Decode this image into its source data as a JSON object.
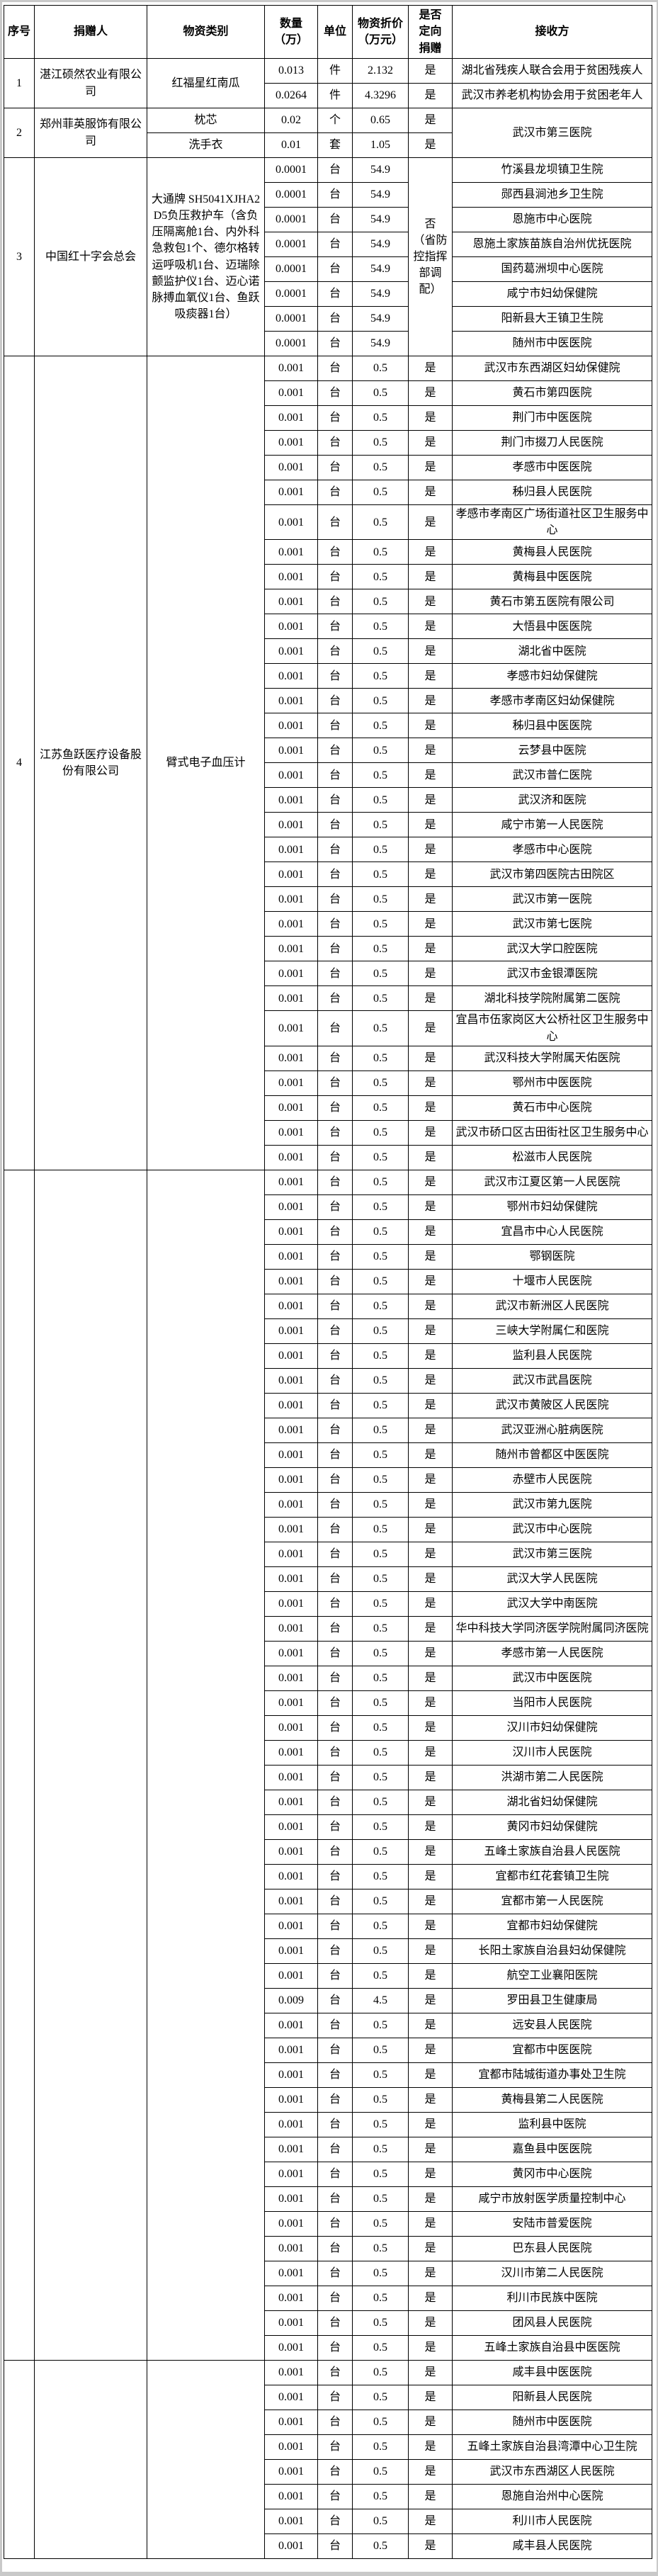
{
  "page": {
    "background": "#ffffff",
    "edge_color": "#c9c9c9",
    "border_color": "#000000"
  },
  "table": {
    "header": [
      "序号",
      "捐赠人",
      "物资类别",
      "数量\n（万）",
      "单位",
      "物资折价\n（万元）",
      "是否\n定向\n捐赠",
      "接收方"
    ],
    "sections": [
      {
        "index": "1",
        "donor": "湛江硕然农业有限公司",
        "category": "红福星红南瓜",
        "directed": null,
        "recipient": null,
        "defaults": {
          "u": "件",
          "d": "是"
        },
        "rows": [
          {
            "q": "0.013",
            "v": "2.132",
            "r": "湖北省残疾人联合会用于贫困残疾人"
          },
          {
            "q": "0.0264",
            "v": "4.3296",
            "r": "武汉市养老机构协会用于贫困老年人"
          }
        ]
      },
      {
        "index": "2",
        "donor": "郑州菲英服饰有限公司",
        "category": null,
        "directed": null,
        "recipient": "武汉市第三医院",
        "defaults": {
          "d": "是"
        },
        "rows": [
          {
            "c": "枕芯",
            "q": "0.02",
            "u": "个",
            "v": "0.65"
          },
          {
            "c": "洗手衣",
            "q": "0.01",
            "u": "套",
            "v": "1.05"
          }
        ]
      },
      {
        "index": "3",
        "donor": "中国红十字会总会",
        "category": "大通牌 SH5041XJHA2D5负压救护车（含负压隔离舱1台、内外科急救包1个、德尔格转运呼吸机1台、迈瑞除颤监护仪1台、迈心诺脉搏血氧仪1台、鱼跃吸痰器1台）",
        "directed": "否\n（省防\n控指挥\n部调配）",
        "recipient": null,
        "defaults": {
          "q": "0.0001",
          "u": "台",
          "v": "54.9"
        },
        "rows": [
          "竹溪县龙坝镇卫生院",
          "郧西县涧池乡卫生院",
          "恩施市中心医院",
          "恩施土家族苗族自治州优抚医院",
          "国药葛洲坝中心医院",
          "咸宁市妇幼保健院",
          "阳新县大王镇卫生院",
          "随州市中医医院"
        ]
      },
      {
        "index": "4",
        "donor": "江苏鱼跃医疗设备股份有限公司",
        "category": "臂式电子血压计",
        "directed": null,
        "recipient": null,
        "defaults": {
          "q": "0.001",
          "u": "台",
          "v": "0.5",
          "d": "是"
        },
        "rows": [
          "武汉市东西湖区妇幼保健院",
          "黄石市第四医院",
          "荆门市中医医院",
          "荆门市掇刀人民医院",
          "孝感市中医医院",
          "秭归县人民医院",
          "孝感市孝南区广场街道社区卫生服务中心",
          "黄梅县人民医院",
          "黄梅县中医医院",
          "黄石市第五医院有限公司",
          "大悟县中医医院",
          "湖北省中医院",
          "孝感市妇幼保健院",
          "孝感市孝南区妇幼保健院",
          "秭归县中医医院",
          "云梦县中医院",
          "武汉市普仁医院",
          "武汉济和医院",
          "咸宁市第一人民医院",
          "孝感市中心医院",
          "武汉市第四医院古田院区",
          "武汉市第一医院",
          "武汉市第七医院",
          "武汉大学口腔医院",
          "武汉市金银潭医院",
          "湖北科技学院附属第二医院",
          "宜昌市伍家岗区大公桥社区卫生服务中心",
          "武汉科技大学附属天佑医院",
          "鄂州市中医医院",
          "黄石市中心医院",
          "武汉市硚口区古田街社区卫生服务中心",
          "松滋市人民医院"
        ]
      },
      {
        "index": "",
        "donor": "",
        "category": "",
        "directed": null,
        "recipient": null,
        "defaults": {
          "q": "0.001",
          "u": "台",
          "v": "0.5",
          "d": "是"
        },
        "rows": [
          "武汉市江夏区第一人民医院",
          "鄂州市妇幼保健院",
          "宜昌市中心人民医院",
          "鄂钢医院",
          "十堰市人民医院",
          "武汉市新洲区人民医院",
          "三峡大学附属仁和医院",
          "监利县人民医院",
          "武汉市武昌医院",
          "武汉市黄陂区人民医院",
          "武汉亚洲心脏病医院",
          "随州市曾都区中医医院",
          "赤壁市人民医院",
          "武汉市第九医院",
          "武汉市中心医院",
          "武汉市第三医院",
          "武汉大学人民医院",
          "武汉大学中南医院",
          "华中科技大学同济医学院附属同济医院",
          "孝感市第一人民医院",
          "武汉市中医医院",
          "当阳市人民医院",
          "汉川市妇幼保健院",
          "汉川市人民医院",
          "洪湖市第二人民医院",
          "湖北省妇幼保健院",
          "黄冈市妇幼保健院",
          "五峰土家族自治县人民医院",
          "宜都市红花套镇卫生院",
          "宜都市第一人民医院",
          "宜都市妇幼保健院",
          "长阳土家族自治县妇幼保健院",
          "航空工业襄阳医院",
          {
            "q": "0.009",
            "v": "4.5",
            "r": "罗田县卫生健康局"
          },
          "远安县人民医院",
          "宜都市中医医院",
          "宜都市陆城街道办事处卫生院",
          "黄梅县第二人民医院",
          "监利县中医院",
          "嘉鱼县中医医院",
          "黄冈市中心医院",
          "咸宁市放射医学质量控制中心",
          "安陆市普爱医院",
          "巴东县人民医院",
          "汉川市第二人民医院",
          "利川市民族中医院",
          "团风县人民医院",
          "五峰土家族自治县中医医院"
        ]
      },
      {
        "index": "",
        "donor": "",
        "category": "",
        "directed": null,
        "recipient": null,
        "defaults": {
          "q": "0.001",
          "u": "台",
          "v": "0.5",
          "d": "是"
        },
        "rows": [
          "咸丰县中医医院",
          "阳新县人民医院",
          "随州市中医医院",
          "五峰土家族自治县湾潭中心卫生院",
          "武汉市东西湖区人民医院",
          "恩施自治州中心医院",
          "利川市人民医院",
          "咸丰县人民医院"
        ]
      }
    ]
  }
}
